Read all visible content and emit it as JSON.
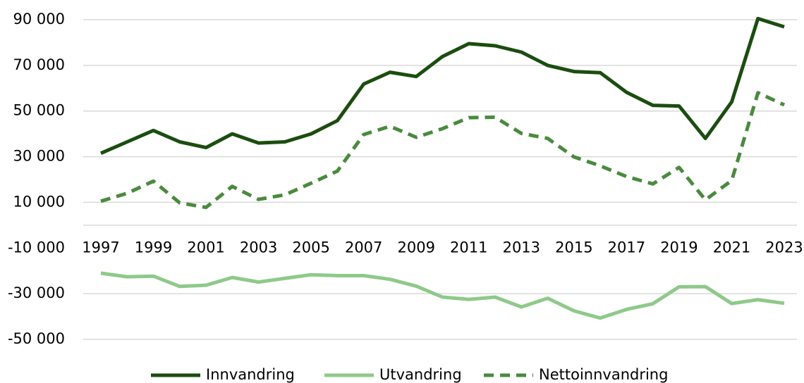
{
  "chart_data": {
    "type": "line",
    "categories": [
      "1997",
      null,
      "1999",
      null,
      "2001",
      null,
      "2003",
      null,
      "2005",
      null,
      "2007",
      null,
      "2009",
      null,
      "2011",
      null,
      "2013",
      null,
      "2015",
      null,
      "2017",
      null,
      "2019",
      null,
      "2021",
      null,
      "2023"
    ],
    "series": [
      {
        "name": "Innvandring",
        "color": "#1b4d10",
        "dash": false,
        "values": [
          31500,
          36500,
          41500,
          36500,
          34000,
          40000,
          36000,
          36500,
          40000,
          45800,
          61800,
          67000,
          65100,
          73900,
          79500,
          78600,
          75800,
          70000,
          67300,
          66800,
          58200,
          52500,
          52200,
          38000,
          54000,
          90500,
          86900
        ]
      },
      {
        "name": "Utvandring",
        "color": "#8fc98a",
        "dash": false,
        "values": [
          -21000,
          -22600,
          -22300,
          -26800,
          -26300,
          -22900,
          -24900,
          -23300,
          -21700,
          -22100,
          -22100,
          -23700,
          -26700,
          -31500,
          -32500,
          -31500,
          -35800,
          -32000,
          -37500,
          -40700,
          -36900,
          -34400,
          -27000,
          -26900,
          -34300,
          -32600,
          -34200
        ]
      },
      {
        "name": "Nettoinnvandring",
        "color": "#4a8a3f",
        "dash": true,
        "values": [
          10500,
          14000,
          19300,
          9800,
          7800,
          17000,
          11300,
          13300,
          18400,
          23700,
          39700,
          43300,
          38500,
          42300,
          47100,
          47300,
          40200,
          38000,
          29900,
          26000,
          21300,
          18100,
          25300,
          11100,
          19600,
          58000,
          52700
        ]
      }
    ],
    "ylim": [
      -50000,
      90000
    ],
    "yticks": [
      {
        "value": -50000,
        "label": "-50 000"
      },
      {
        "value": -30000,
        "label": "-30 000"
      },
      {
        "value": -10000,
        "label": "-10 000"
      },
      {
        "value": 10000,
        "label": "10 000"
      },
      {
        "value": 30000,
        "label": "30 000"
      },
      {
        "value": 50000,
        "label": "50 000"
      },
      {
        "value": 70000,
        "label": "70 000"
      },
      {
        "value": 90000,
        "label": "90 000"
      }
    ],
    "grid": true,
    "legend": "bottom"
  }
}
